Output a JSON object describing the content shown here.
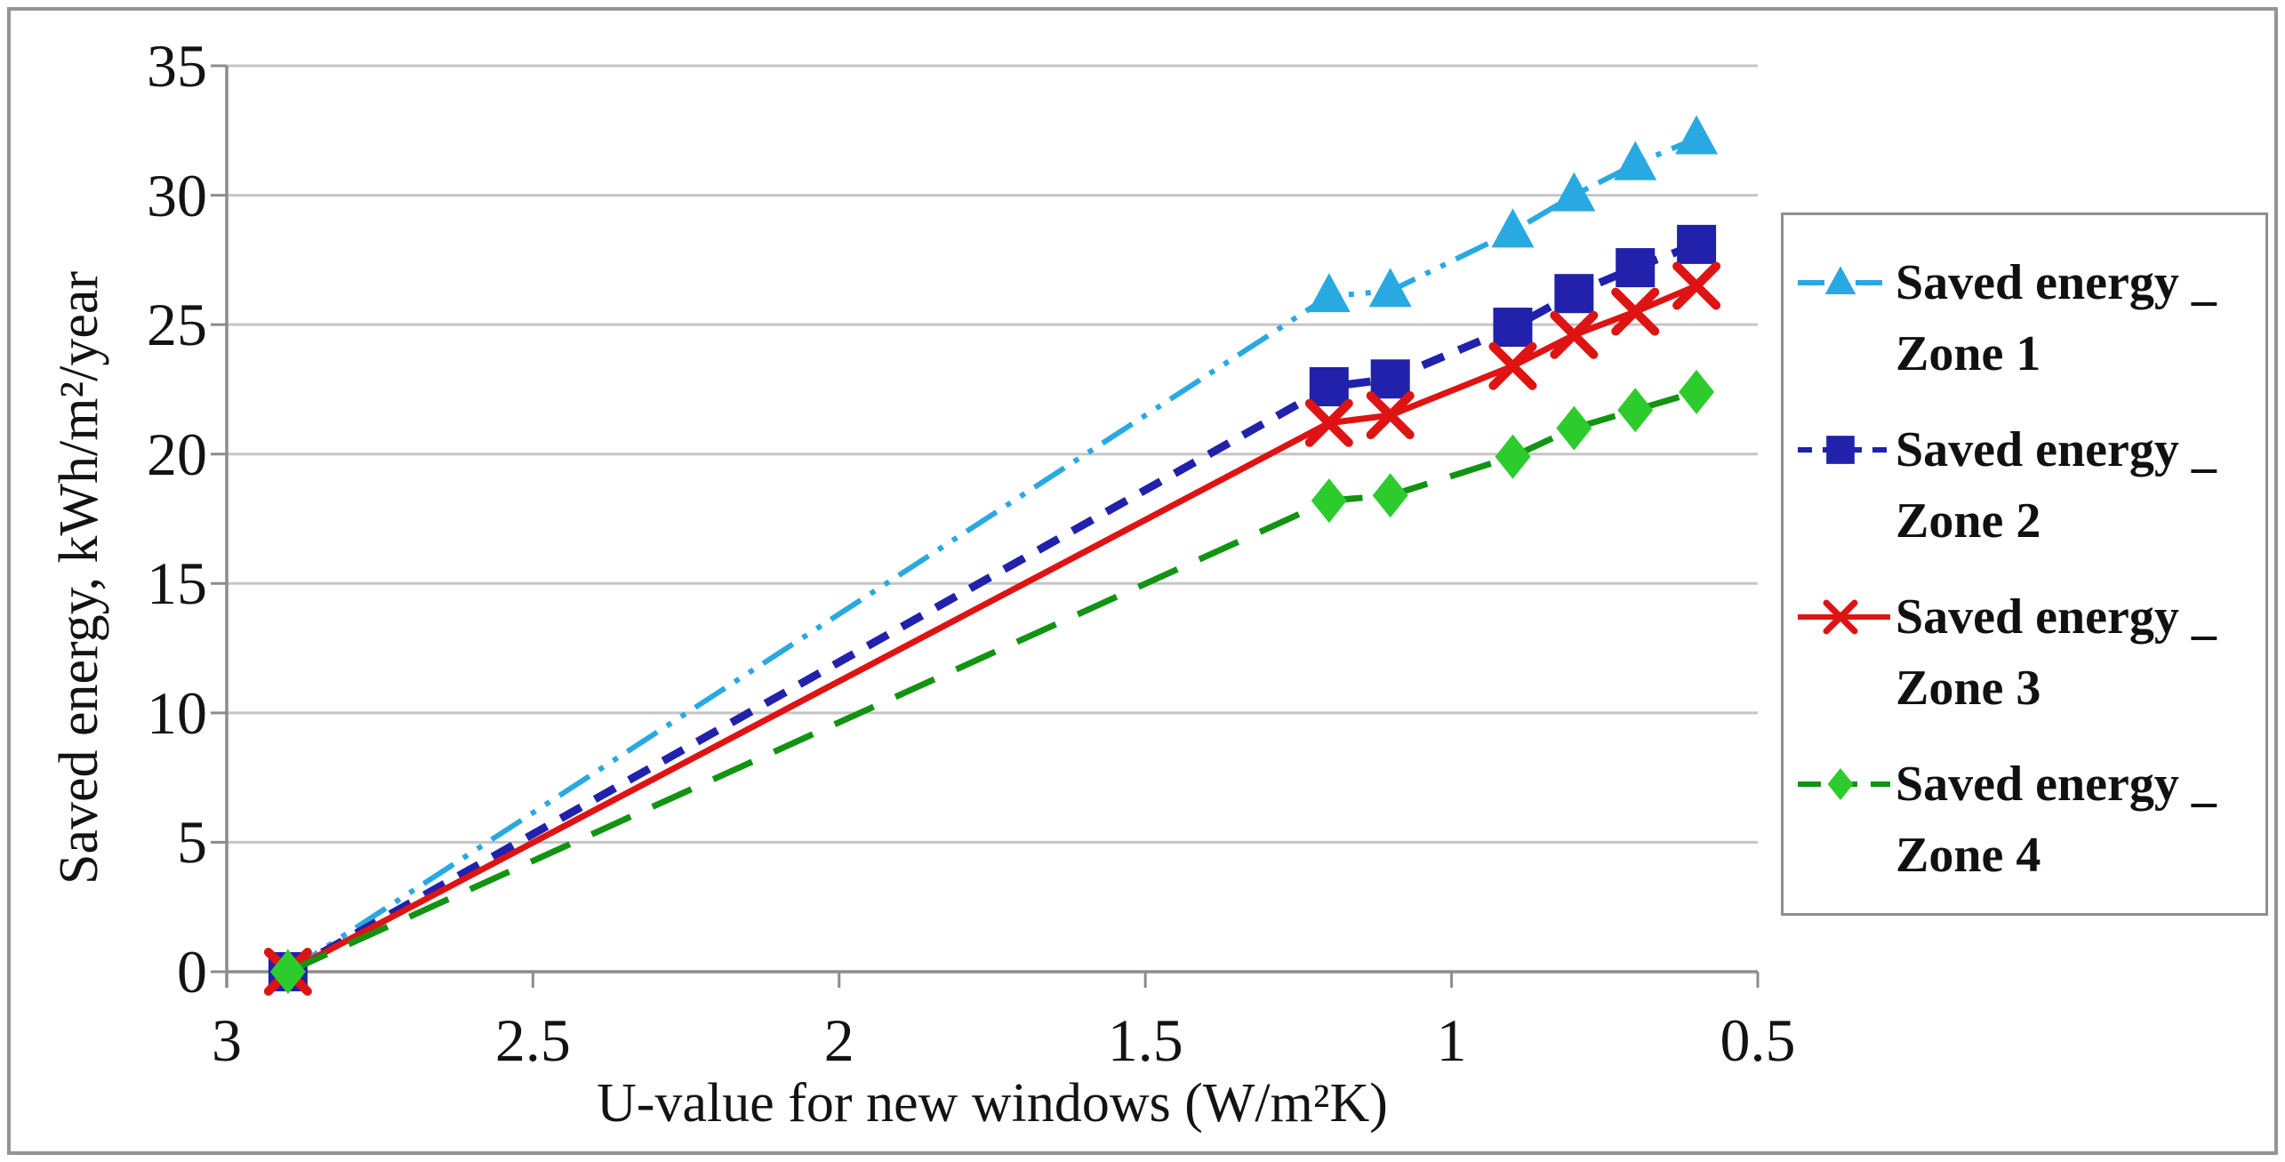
{
  "chart_data": {
    "type": "line",
    "title": "",
    "xlabel": "U-value for new windows (W/m²K)",
    "ylabel": "Saved energy, kWh/m²/year",
    "x_axis_reversed": true,
    "xlim": [
      3,
      0.5
    ],
    "ylim": [
      0,
      35
    ],
    "x_ticks": [
      "3",
      "2.5",
      "2",
      "1.5",
      "1",
      "0.5"
    ],
    "x_tick_values": [
      3,
      2.5,
      2,
      1.5,
      1,
      0.5
    ],
    "y_ticks": [
      "0",
      "5",
      "10",
      "15",
      "20",
      "25",
      "30",
      "35"
    ],
    "y_tick_values": [
      0,
      5,
      10,
      15,
      20,
      25,
      30,
      35
    ],
    "grid": "horizontal",
    "legend_position": "right",
    "x": [
      2.9,
      1.2,
      1.1,
      0.9,
      0.8,
      0.7,
      0.6
    ],
    "series": [
      {
        "name": "Saved energy _ Zone 1",
        "legend_line1": "Saved energy _",
        "legend_line2": "Zone 1",
        "color": "#29A9E1",
        "marker": "triangle",
        "line_style": "dash-dot-dot",
        "line_width": 6,
        "values": [
          0,
          26.1,
          26.3,
          28.6,
          30.0,
          31.2,
          32.2
        ]
      },
      {
        "name": "Saved energy _ Zone 2",
        "legend_line1": "Saved energy _",
        "legend_line2": "Zone 2",
        "color": "#2121AC",
        "marker": "square",
        "line_style": "dashed",
        "line_width": 9,
        "values": [
          0,
          22.6,
          22.9,
          24.9,
          26.2,
          27.2,
          28.1
        ]
      },
      {
        "name": "Saved energy _ Zone 3",
        "legend_line1": "Saved energy _",
        "legend_line2": "Zone 3",
        "color": "#DE1414",
        "marker": "x",
        "line_style": "solid",
        "line_width": 7,
        "values": [
          0,
          21.2,
          21.5,
          23.4,
          24.6,
          25.5,
          26.5
        ]
      },
      {
        "name": "Saved energy _ Zone 4",
        "legend_line1": "Saved energy _",
        "legend_line2": "Zone 4",
        "color": "#129412",
        "marker_color": "#2DCC2D",
        "marker": "diamond",
        "line_style": "long-dash",
        "line_width": 7,
        "values": [
          0,
          18.2,
          18.4,
          19.9,
          21.0,
          21.7,
          22.4
        ]
      }
    ]
  }
}
